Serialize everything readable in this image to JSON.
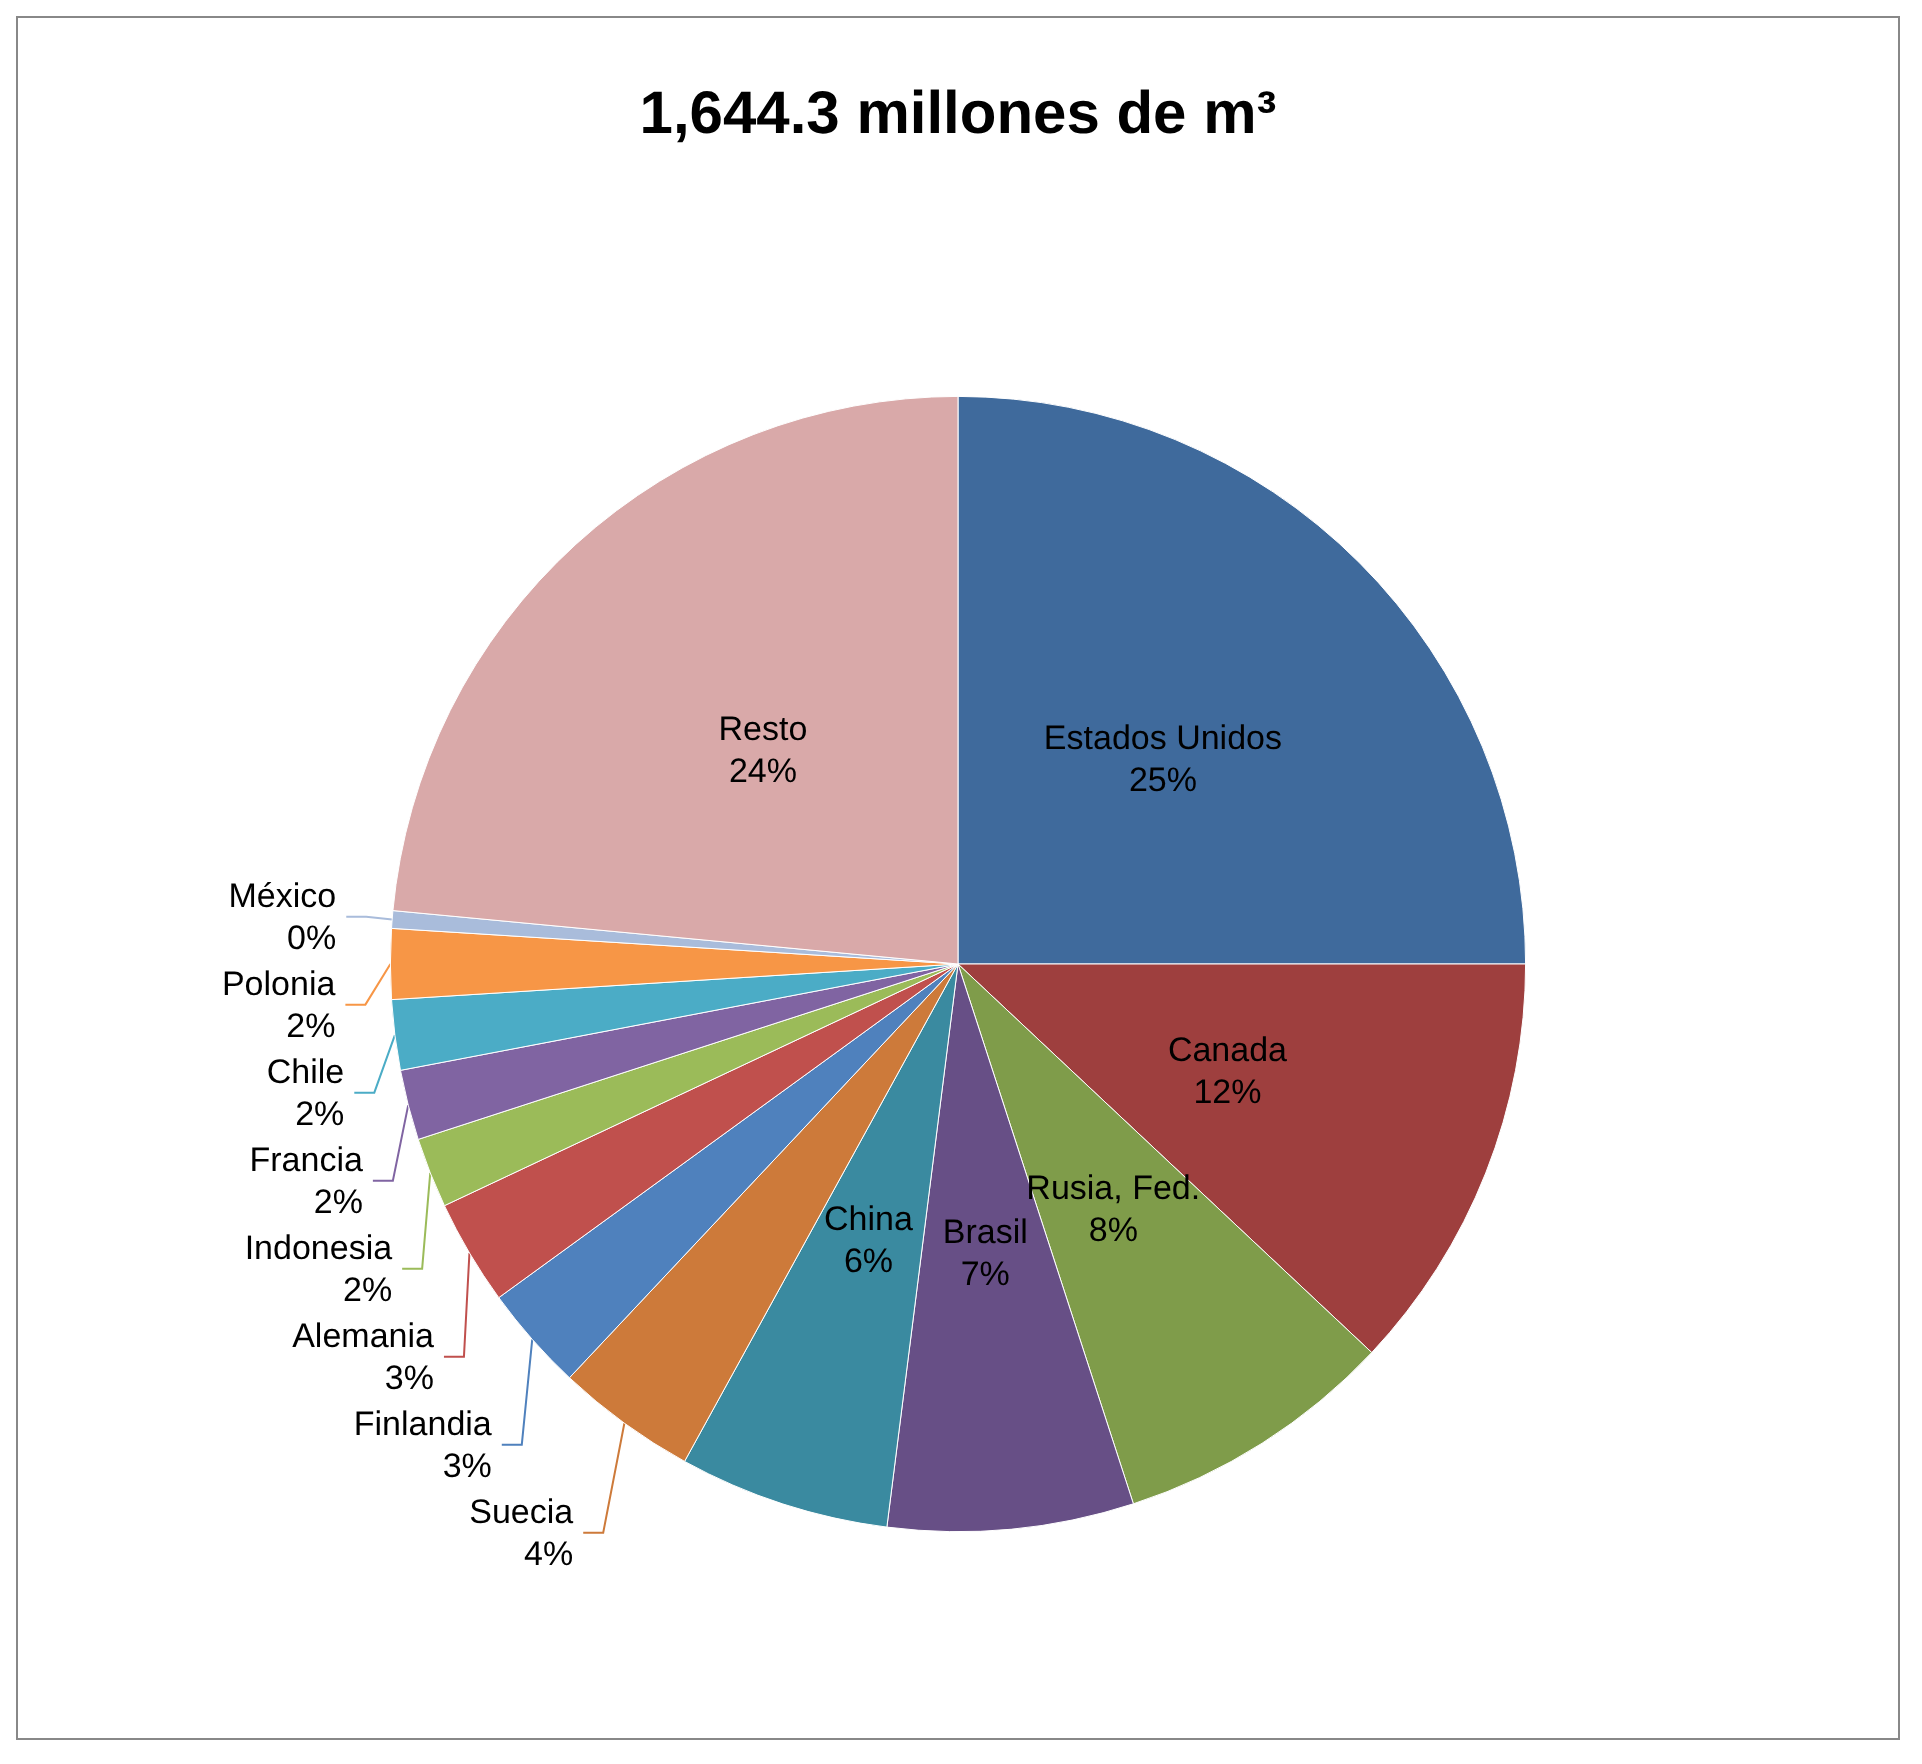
{
  "chart_data": {
    "type": "pie",
    "title": "1,644.3 millones de m³",
    "categories": [
      "Estados Unidos",
      "Canada",
      "Rusia, Fed.",
      "Brasil",
      "China",
      "Suecia",
      "Finlandia",
      "Alemania",
      "Indonesia",
      "Francia",
      "Chile",
      "Polonia",
      "México",
      "Resto"
    ],
    "values": [
      25,
      12,
      8,
      7,
      6,
      4,
      3,
      3,
      2,
      2,
      2,
      2,
      0.5,
      23.5
    ],
    "value_labels": [
      "25%",
      "12%",
      "8%",
      "7%",
      "6%",
      "4%",
      "3%",
      "3%",
      "2%",
      "2%",
      "2%",
      "2%",
      "0%",
      "24%"
    ],
    "colors": [
      "#3f6a9c",
      "#9e3f3e",
      "#7f9c4a",
      "#674f86",
      "#3a8aa0",
      "#cd7a3a",
      "#4f81bd",
      "#c0504d",
      "#9bbb59",
      "#8064a2",
      "#4bacc6",
      "#f79646",
      "#a9bcdb",
      "#d9a9a9"
    ],
    "legend": false
  }
}
